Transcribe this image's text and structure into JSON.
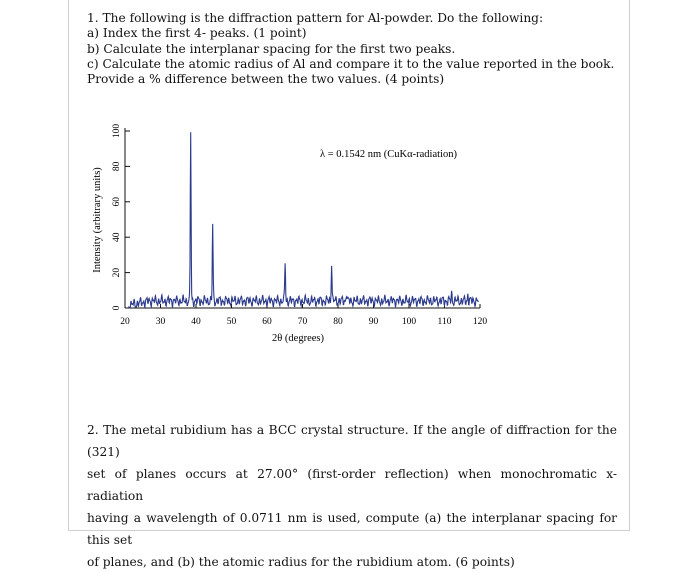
{
  "question1": {
    "lines": [
      "1. The following is the diffraction pattern for Al-powder.  Do the following:",
      "a) Index the first 4- peaks. (1 point)",
      "b) Calculate the interplanar spacing for the first two peaks.",
      "c) Calculate the atomic radius of Al and compare it to the value reported in the book.",
      "Provide a % difference between the two values.  (4 points)"
    ]
  },
  "chart_data": {
    "type": "line",
    "title": "",
    "annotation": "λ = 0.1542 nm (CuKα-radiation)",
    "xlabel": "2θ (degrees)",
    "ylabel": "Intensity (arbitrary units)",
    "xlim": [
      20,
      120
    ],
    "ylim": [
      0,
      100
    ],
    "xticks": [
      20,
      30,
      40,
      50,
      60,
      70,
      80,
      90,
      100,
      110,
      120
    ],
    "yticks": [
      0,
      20,
      40,
      60,
      80,
      100
    ],
    "series": [
      {
        "peaks_2theta": [
          38.5,
          44.7,
          65.1,
          78.2,
          82.4,
          99.1,
          112.0,
          116.6
        ],
        "peak_intensity": [
          100,
          47,
          26,
          26,
          9,
          4,
          8,
          8
        ],
        "baseline": 4
      }
    ]
  },
  "question2": {
    "lines": [
      "2.  The metal rubidium has a BCC crystal structure. If the angle of diffraction for the (321)",
      "set of planes occurs at 27.00° (first-order reflection) when monochromatic x-radiation",
      "having a wavelength of 0.0711 nm is used, compute (a) the interplanar spacing for this set",
      "of planes, and (b) the atomic radius for the rubidium atom.  (6 points)"
    ]
  }
}
